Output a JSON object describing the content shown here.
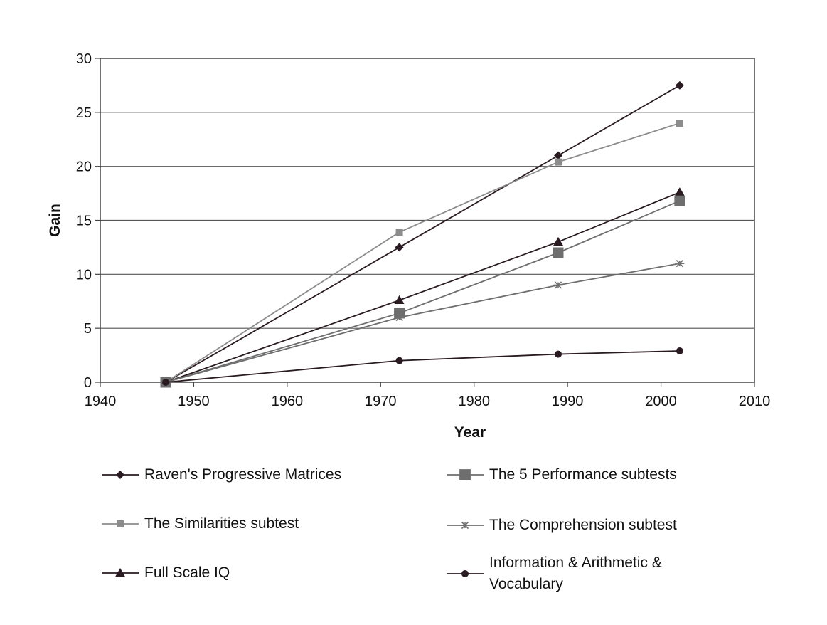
{
  "chart_data": {
    "type": "line",
    "xlabel": "Year",
    "ylabel": "Gain",
    "xlim": [
      1940,
      2010
    ],
    "ylim": [
      0,
      30
    ],
    "xticks": [
      1940,
      1950,
      1960,
      1970,
      1980,
      1990,
      2000,
      2010
    ],
    "yticks": [
      0,
      5,
      10,
      15,
      20,
      25,
      30
    ],
    "grid": "horizontal",
    "legend_position": "bottom",
    "series": [
      {
        "name": "Raven's Progressive Matrices",
        "marker": "diamond",
        "color": "#2a1b22",
        "x": [
          1947,
          1972,
          1989,
          2002
        ],
        "y": [
          0,
          12.5,
          21.0,
          27.5
        ]
      },
      {
        "name": "The Similarities subtest",
        "marker": "small-square",
        "color": "#8c8c8c",
        "x": [
          1947,
          1972,
          1989,
          2002
        ],
        "y": [
          0,
          13.9,
          20.4,
          24.0
        ]
      },
      {
        "name": "Full Scale IQ",
        "marker": "triangle",
        "color": "#2a1b22",
        "x": [
          1947,
          1972,
          1989,
          2002
        ],
        "y": [
          0,
          7.6,
          13.0,
          17.6
        ]
      },
      {
        "name": "The 5 Performance subtests",
        "marker": "square",
        "color": "#6e6e6e",
        "x": [
          1947,
          1972,
          1989,
          2002
        ],
        "y": [
          0,
          6.4,
          12.0,
          16.8
        ]
      },
      {
        "name": "The Comprehension subtest",
        "marker": "asterisk",
        "color": "#6e6e6e",
        "x": [
          1947,
          1972,
          1989,
          2002
        ],
        "y": [
          0,
          6.0,
          9.0,
          11.0
        ]
      },
      {
        "name": "Information & Arithmetic &\nVocabulary",
        "marker": "circle",
        "color": "#2a1b22",
        "x": [
          1947,
          1972,
          1989,
          2002
        ],
        "y": [
          0,
          2.0,
          2.6,
          2.9
        ]
      }
    ]
  }
}
